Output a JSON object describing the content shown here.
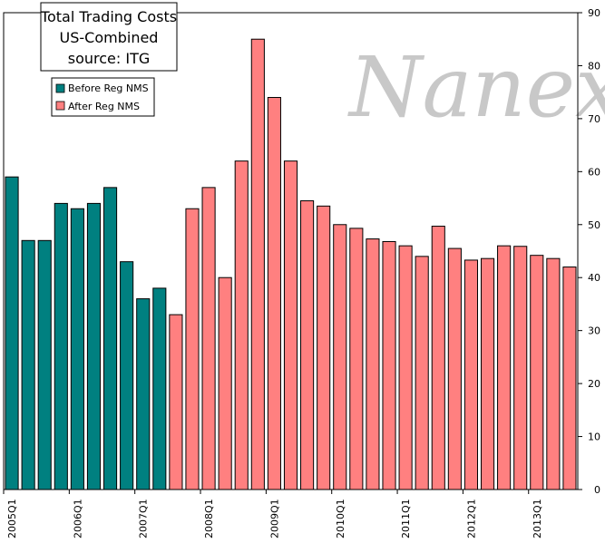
{
  "chart_data": {
    "type": "bar",
    "title_lines": [
      "Total Trading Costs",
      "US-Combined",
      "source: ITG"
    ],
    "watermark": "Nanex",
    "xlabel": "",
    "ylabel": "",
    "ylim": [
      0,
      90
    ],
    "y_ticks": [
      0,
      10,
      20,
      30,
      40,
      50,
      60,
      70,
      80,
      90
    ],
    "y_axis_side": "right",
    "x_tick_labels": [
      "2005Q1",
      "2006Q1",
      "2007Q1",
      "2008Q1",
      "2009Q1",
      "2010Q1",
      "2011Q1",
      "2012Q1",
      "2013Q1"
    ],
    "legend_placement": "top-left",
    "grid": false,
    "series": [
      {
        "name": "Before Reg NMS",
        "color": "#008080",
        "categories": [
          "2005Q1",
          "2005Q2",
          "2005Q3",
          "2005Q4",
          "2006Q1",
          "2006Q2",
          "2006Q3",
          "2006Q4",
          "2007Q1",
          "2007Q2"
        ],
        "values": [
          59,
          47,
          47,
          54,
          53,
          54,
          57,
          43,
          36,
          38
        ]
      },
      {
        "name": "After Reg NMS",
        "color": "#ff8080",
        "categories": [
          "2007Q3",
          "2007Q4",
          "2008Q1",
          "2008Q2",
          "2008Q3",
          "2008Q4",
          "2009Q1",
          "2009Q2",
          "2009Q3",
          "2009Q4",
          "2010Q1",
          "2010Q2",
          "2010Q3",
          "2010Q4",
          "2011Q1",
          "2011Q2",
          "2011Q3",
          "2011Q4",
          "2012Q1",
          "2012Q2",
          "2012Q3",
          "2012Q4",
          "2013Q1",
          "2013Q2",
          "2013Q3"
        ],
        "values": [
          33,
          53,
          57,
          40,
          62,
          85,
          74,
          62,
          54.5,
          53.5,
          50,
          49.3,
          47.3,
          46.8,
          46,
          44,
          49.7,
          45.5,
          43.3,
          43.6,
          46,
          45.9,
          44.2,
          43.6,
          42
        ]
      }
    ]
  }
}
